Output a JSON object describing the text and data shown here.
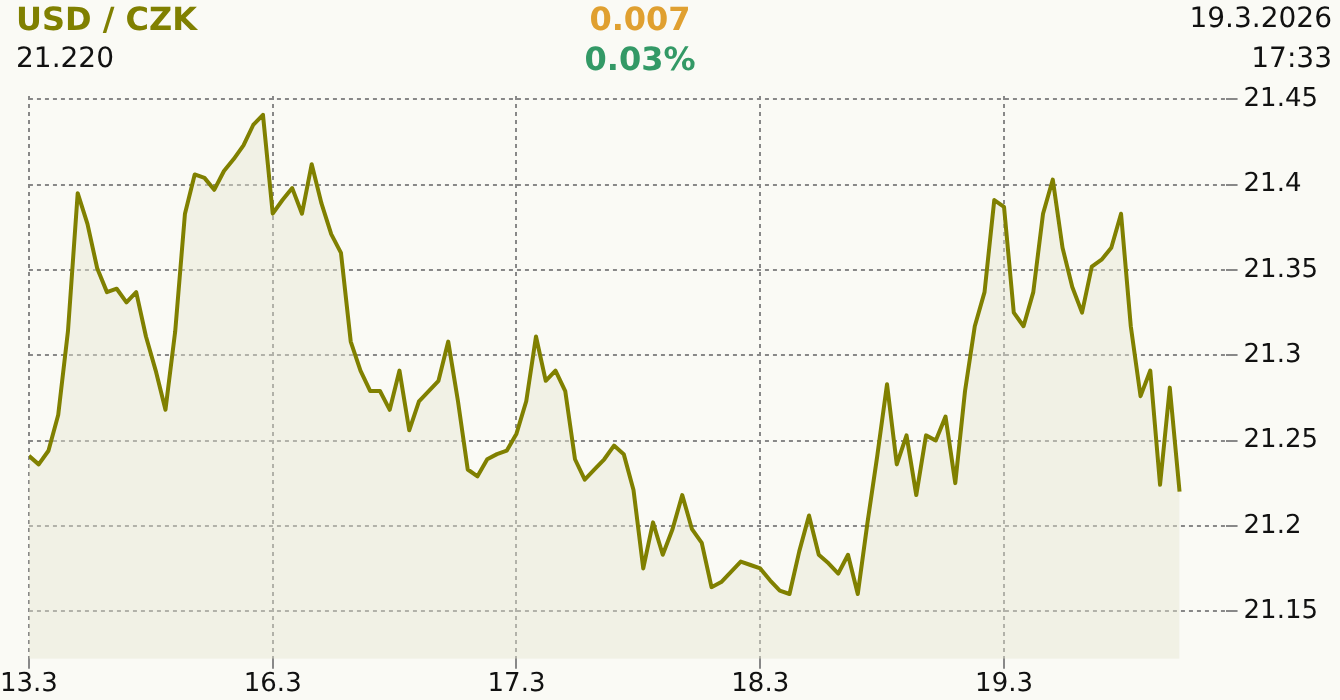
{
  "chart_data": {
    "type": "area",
    "title": "USD / CZK",
    "annotations": [
      "21.220",
      "0.007",
      "0.03%",
      "19.3.2026",
      "17:33"
    ],
    "categories": [
      "13.3",
      null,
      null,
      null,
      null,
      null,
      null,
      null,
      null,
      null,
      null,
      null,
      null,
      null,
      null,
      null,
      null,
      null,
      null,
      null,
      null,
      null,
      null,
      null,
      null,
      "16.3",
      null,
      null,
      null,
      null,
      null,
      null,
      null,
      null,
      null,
      null,
      null,
      null,
      null,
      null,
      null,
      null,
      null,
      null,
      null,
      null,
      null,
      null,
      null,
      null,
      "17.3",
      null,
      null,
      null,
      null,
      null,
      null,
      null,
      null,
      null,
      null,
      null,
      null,
      null,
      null,
      null,
      null,
      null,
      null,
      null,
      null,
      null,
      null,
      null,
      null,
      "18.3",
      null,
      null,
      null,
      null,
      null,
      null,
      null,
      null,
      null,
      null,
      null,
      null,
      null,
      null,
      null,
      null,
      null,
      null,
      null,
      null,
      null,
      null,
      null,
      null,
      "19.3",
      null,
      null,
      null,
      null,
      null,
      null,
      null,
      null,
      null,
      null,
      null,
      null,
      null,
      null,
      null,
      null,
      null,
      null
    ],
    "ylim": [
      21.122,
      21.452
    ],
    "yticks": [
      21.15,
      21.2,
      21.25,
      21.3,
      21.35,
      21.4,
      21.45
    ],
    "grid": true,
    "legend": false,
    "series": [
      {
        "color": "#808000",
        "values": [
          21.241,
          21.236,
          21.244,
          21.265,
          21.314,
          21.395,
          21.377,
          21.351,
          21.337,
          21.339,
          21.331,
          21.337,
          21.311,
          21.291,
          21.268,
          21.314,
          21.383,
          21.406,
          21.404,
          21.397,
          21.408,
          21.415,
          21.423,
          21.435,
          21.441,
          21.383,
          21.391,
          21.398,
          21.383,
          21.412,
          21.389,
          21.371,
          21.36,
          21.308,
          21.291,
          21.279,
          21.279,
          21.268,
          21.291,
          21.256,
          21.273,
          21.279,
          21.285,
          21.308,
          21.273,
          21.233,
          21.229,
          21.239,
          21.242,
          21.244,
          21.254,
          21.273,
          21.311,
          21.285,
          21.291,
          21.279,
          21.239,
          21.227,
          21.233,
          21.239,
          21.247,
          21.242,
          21.221,
          21.175,
          21.202,
          21.183,
          21.198,
          21.218,
          21.198,
          21.19,
          21.164,
          21.167,
          21.173,
          21.179,
          21.177,
          21.175,
          21.168,
          21.162,
          21.16,
          21.185,
          21.206,
          21.183,
          21.178,
          21.172,
          21.183,
          21.16,
          21.202,
          21.241,
          21.283,
          21.236,
          21.253,
          21.218,
          21.253,
          21.25,
          21.264,
          21.225,
          21.279,
          21.317,
          21.337,
          21.391,
          21.387,
          21.325,
          21.317,
          21.337,
          21.383,
          21.403,
          21.363,
          21.34,
          21.325,
          21.352,
          21.356,
          21.363,
          21.383,
          21.317,
          21.276,
          21.291,
          21.224,
          21.281,
          21.22
        ]
      }
    ]
  }
}
